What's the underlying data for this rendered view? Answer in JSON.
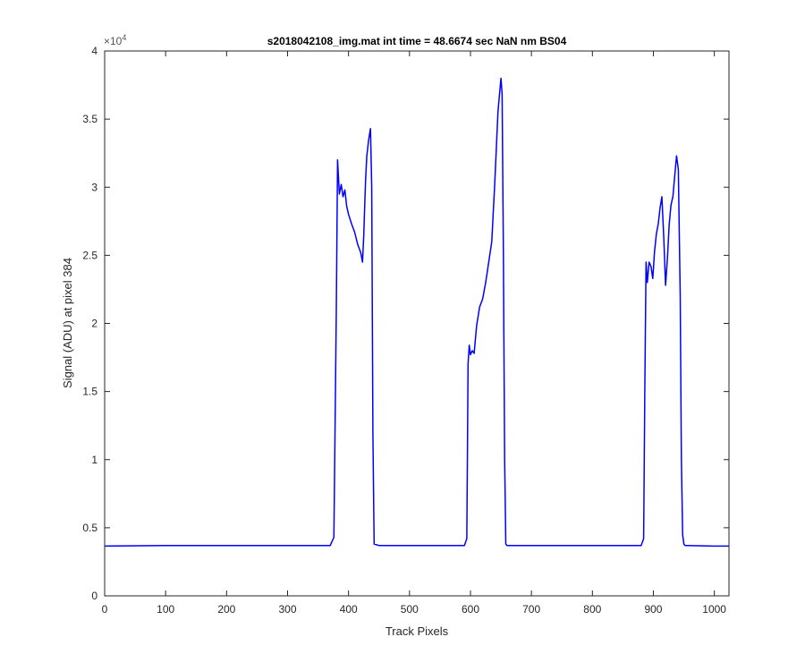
{
  "chart_data": {
    "type": "line",
    "title": "s2018042108_img.mat int time = 48.6674 sec  NaN nm BS04",
    "xlabel": "Track Pixels",
    "ylabel": "Signal (ADU) at pixel 384",
    "xlim": [
      0,
      1024
    ],
    "ylim": [
      0,
      40000
    ],
    "x_ticks": [
      0,
      100,
      200,
      300,
      400,
      500,
      600,
      700,
      800,
      900,
      1000
    ],
    "y_ticks": [
      0,
      5000,
      10000,
      15000,
      20000,
      25000,
      30000,
      35000,
      40000
    ],
    "y_tick_labels": [
      "0",
      "0.5",
      "1",
      "1.5",
      "2",
      "2.5",
      "3",
      "3.5",
      "4"
    ],
    "y_exponent_base": "×10",
    "y_exponent_power": "4",
    "grid": false,
    "line_color": "#0000ff",
    "series": [
      {
        "x": [
          0,
          100,
          200,
          300,
          370,
          376,
          380,
          382,
          385,
          388,
          391,
          394,
          397,
          400,
          405,
          410,
          415,
          420,
          423,
          425,
          428,
          430,
          433,
          436,
          438,
          440,
          442,
          450,
          500,
          550,
          590,
          594,
          596,
          598,
          600,
          603,
          606,
          610,
          615,
          620,
          625,
          630,
          635,
          640,
          645,
          648,
          650,
          652,
          654,
          656,
          658,
          660,
          700,
          800,
          880,
          884,
          886,
          888,
          890,
          893,
          896,
          899,
          902,
          905,
          908,
          911,
          914,
          917,
          920,
          923,
          926,
          929,
          932,
          935,
          938,
          941,
          944,
          946,
          948,
          950,
          952,
          954,
          1000,
          1024
        ],
        "y": [
          3650,
          3700,
          3700,
          3700,
          3700,
          4300,
          21000,
          32000,
          29500,
          30200,
          29300,
          29800,
          28600,
          28000,
          27300,
          26700,
          25800,
          25200,
          24500,
          26500,
          30500,
          32300,
          33500,
          34300,
          30000,
          12000,
          3800,
          3700,
          3700,
          3700,
          3700,
          4200,
          17000,
          18400,
          17700,
          18000,
          17800,
          19800,
          21200,
          21800,
          23000,
          24500,
          26000,
          30500,
          35500,
          37000,
          38000,
          36800,
          25000,
          10000,
          3800,
          3700,
          3700,
          3700,
          3700,
          4200,
          15000,
          24500,
          23000,
          24500,
          24200,
          23300,
          25300,
          26600,
          27300,
          28500,
          29300,
          26300,
          22800,
          24800,
          27300,
          28700,
          29300,
          30800,
          32300,
          31300,
          22000,
          10000,
          4500,
          3800,
          3700,
          3700,
          3650,
          3650
        ]
      }
    ]
  }
}
